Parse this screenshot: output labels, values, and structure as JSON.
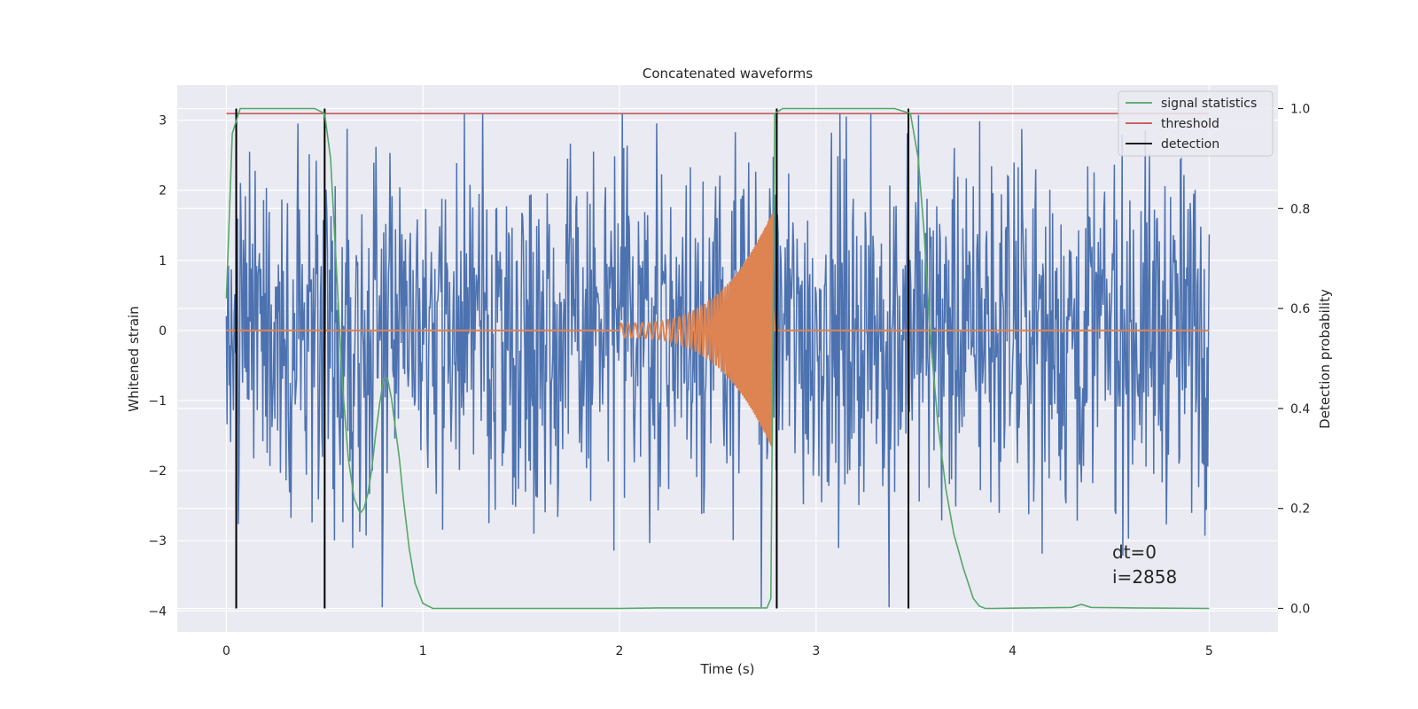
{
  "chart_data": {
    "type": "line",
    "title": "Concatenated waveforms",
    "xlabel": "Time (s)",
    "ylabel": "Whitened strain",
    "y2label": "Detection probability",
    "xlim": [
      -0.25,
      5.35
    ],
    "ylim": [
      -4.3,
      3.5
    ],
    "y2lim": [
      -0.047,
      1.047
    ],
    "x_ticks": [
      0,
      1,
      2,
      3,
      4,
      5
    ],
    "y_ticks": [
      -4,
      -3,
      -2,
      -1,
      0,
      1,
      2,
      3
    ],
    "y2_ticks": [
      0.0,
      0.2,
      0.4,
      0.6,
      0.8,
      1.0
    ],
    "x_tick_labels": [
      "0",
      "1",
      "2",
      "3",
      "4",
      "5"
    ],
    "y_tick_labels": [
      "−4",
      "−3",
      "−2",
      "−1",
      "0",
      "1",
      "2",
      "3"
    ],
    "y2_tick_labels": [
      "0.0",
      "0.2",
      "0.4",
      "0.6",
      "0.8",
      "1.0"
    ],
    "grid": true,
    "legend_position": "top-right",
    "colors": {
      "background": "#eaeaf2",
      "strain": "#4c72b0",
      "injection": "#dd8452",
      "signal_statistics": "#55a868",
      "threshold": "#c44e52",
      "detection": "#000000"
    },
    "strain_noise": {
      "x_range": [
        0,
        5
      ],
      "typical_amplitude": 1.3,
      "max": 3.1,
      "min": -3.95
    },
    "injection": {
      "name": "injection",
      "x_start": 2.0,
      "x_merger": 2.78,
      "start_amplitude": 0.1,
      "peak_amplitude": 1.7,
      "start_frequency_hz": 28,
      "end_frequency_hz": 190
    },
    "series": [
      {
        "name": "signal statistics",
        "x": [
          0.0,
          0.03,
          0.07,
          0.12,
          0.45,
          0.5,
          0.53,
          0.56,
          0.59,
          0.62,
          0.65,
          0.68,
          0.7,
          0.72,
          0.74,
          0.76,
          0.78,
          0.8,
          0.82,
          0.84,
          0.86,
          0.88,
          0.9,
          0.93,
          0.96,
          1.0,
          1.05,
          1.1,
          2.0,
          2.2,
          2.75,
          2.77,
          2.79,
          2.83,
          3.4,
          3.48,
          3.52,
          3.55,
          3.58,
          3.62,
          3.66,
          3.7,
          3.75,
          3.8,
          3.83,
          3.86,
          3.9,
          4.3,
          4.35,
          4.4,
          4.6,
          5.0
        ],
        "values": [
          0.62,
          0.95,
          1.0,
          1.0,
          1.0,
          0.99,
          0.9,
          0.68,
          0.45,
          0.3,
          0.22,
          0.19,
          0.2,
          0.23,
          0.28,
          0.35,
          0.41,
          0.46,
          0.46,
          0.42,
          0.36,
          0.3,
          0.22,
          0.12,
          0.05,
          0.01,
          0.0,
          0.0,
          0.0,
          0.001,
          0.001,
          0.02,
          0.99,
          1.0,
          1.0,
          0.99,
          0.9,
          0.75,
          0.55,
          0.37,
          0.24,
          0.15,
          0.08,
          0.02,
          0.005,
          0.0,
          0.0,
          0.002,
          0.008,
          0.002,
          0.001,
          0.0
        ]
      },
      {
        "name": "threshold",
        "x": [
          0,
          5
        ],
        "values": [
          0.99,
          0.99
        ]
      }
    ],
    "detections": {
      "name": "detection",
      "x": [
        0.05,
        0.5,
        2.8,
        3.47
      ]
    },
    "annotations": [
      "dt=0",
      "i=2858"
    ]
  }
}
